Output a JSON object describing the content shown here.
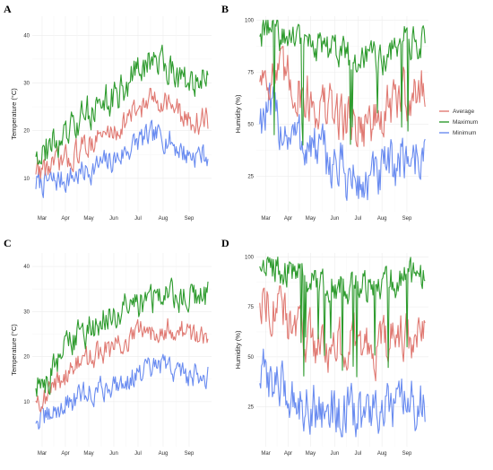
{
  "series_colors": {
    "Average": "#E07A73",
    "Maximum": "#2E9B2E",
    "Minimum": "#6A8CF0"
  },
  "legend": {
    "items": [
      {
        "name": "Average",
        "color": "#E07A73"
      },
      {
        "name": "Maximum",
        "color": "#2E9B2E"
      },
      {
        "name": "Minimum",
        "color": "#6A8CF0"
      }
    ],
    "placement": "right"
  },
  "chart_data": [
    {
      "panel": "A",
      "type": "line",
      "xlabel": "",
      "ylabel": "Temperature (°C)",
      "x_ticks": [
        "Mar",
        "Apr",
        "May",
        "Jun",
        "Jul",
        "Aug",
        "Sep"
      ],
      "y_ticks": [
        10,
        20,
        30,
        40
      ],
      "ylim": [
        3,
        44
      ],
      "grid": true,
      "series": [
        {
          "name": "Maximum",
          "monthly": [
            16,
            19,
            25,
            27,
            33,
            35,
            30
          ],
          "range": [
            13,
            42
          ]
        },
        {
          "name": "Average",
          "monthly": [
            12,
            14,
            18,
            20,
            25,
            27,
            22
          ],
          "range": [
            8,
            32
          ]
        },
        {
          "name": "Minimum",
          "monthly": [
            9,
            10,
            12,
            14,
            18,
            19,
            15
          ],
          "range": [
            4,
            24
          ]
        }
      ]
    },
    {
      "panel": "B",
      "type": "line",
      "xlabel": "",
      "ylabel": "Humidity (%)",
      "x_ticks": [
        "Mar",
        "Apr",
        "May",
        "Jun",
        "Jul",
        "Aug",
        "Sep"
      ],
      "y_ticks": [
        25,
        50,
        75,
        100
      ],
      "ylim": [
        8,
        102
      ],
      "grid": true,
      "series": [
        {
          "name": "Maximum",
          "monthly": [
            95,
            90,
            88,
            85,
            80,
            82,
            90
          ],
          "range": [
            40,
            100
          ]
        },
        {
          "name": "Average",
          "monthly": [
            75,
            70,
            60,
            55,
            50,
            52,
            65
          ],
          "range": [
            25,
            90
          ]
        },
        {
          "name": "Minimum",
          "monthly": [
            55,
            45,
            38,
            30,
            20,
            25,
            35
          ],
          "range": [
            12,
            70
          ]
        }
      ]
    },
    {
      "panel": "C",
      "type": "line",
      "xlabel": "",
      "ylabel": "Temperature (°C)",
      "x_ticks": [
        "Mar",
        "Apr",
        "May",
        "Jun",
        "Jul",
        "Aug",
        "Sep"
      ],
      "y_ticks": [
        10,
        20,
        30,
        40
      ],
      "ylim": [
        0,
        43
      ],
      "grid": true,
      "series": [
        {
          "name": "Maximum",
          "monthly": [
            14,
            23,
            27,
            29,
            32,
            34,
            33
          ],
          "range": [
            10,
            41
          ]
        },
        {
          "name": "Average",
          "monthly": [
            11,
            17,
            20,
            22,
            25,
            27,
            25
          ],
          "range": [
            7,
            32
          ]
        },
        {
          "name": "Minimum",
          "monthly": [
            6,
            10,
            12,
            14,
            16,
            18,
            16
          ],
          "range": [
            1,
            22
          ]
        }
      ]
    },
    {
      "panel": "D",
      "type": "line",
      "xlabel": "",
      "ylabel": "Humidity (%)",
      "x_ticks": [
        "Mar",
        "Apr",
        "May",
        "Jun",
        "Jul",
        "Aug",
        "Sep"
      ],
      "y_ticks": [
        25,
        50,
        75,
        100
      ],
      "ylim": [
        5,
        102
      ],
      "grid": true,
      "series": [
        {
          "name": "Maximum",
          "monthly": [
            97,
            92,
            88,
            85,
            85,
            86,
            90
          ],
          "range": [
            40,
            100
          ]
        },
        {
          "name": "Average",
          "monthly": [
            80,
            65,
            58,
            55,
            55,
            55,
            60
          ],
          "range": [
            30,
            95
          ]
        },
        {
          "name": "Minimum",
          "monthly": [
            40,
            30,
            25,
            22,
            20,
            22,
            25
          ],
          "range": [
            10,
            60
          ]
        }
      ]
    }
  ]
}
